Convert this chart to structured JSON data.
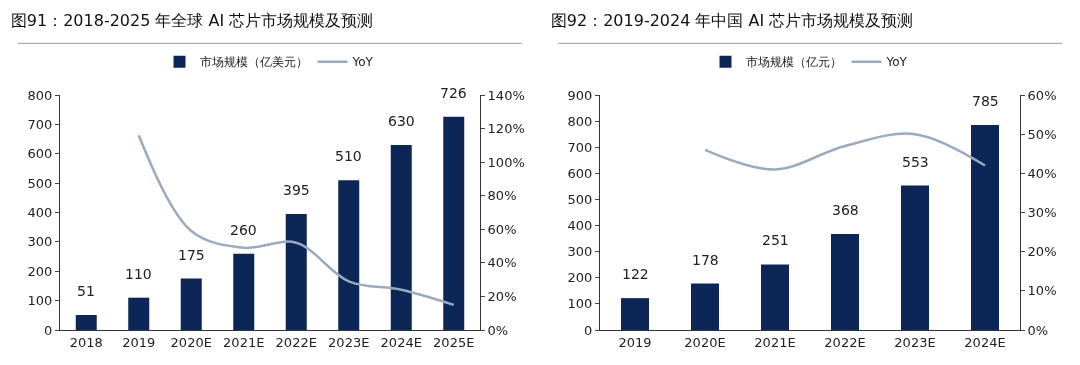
{
  "chart_data": [
    {
      "type": "bar",
      "title": "图91：2018-2025 年全球 AI 芯片市场规模及预测",
      "categories": [
        "2018",
        "2019",
        "2020E",
        "2021E",
        "2022E",
        "2023E",
        "2024E",
        "2025E"
      ],
      "series": [
        {
          "name": "市场规模（亿美元）",
          "color": "#0c2658",
          "values": [
            51,
            110,
            175,
            260,
            395,
            510,
            630,
            726
          ],
          "value_labels": [
            "51",
            "110",
            "175",
            "260",
            "395",
            "510",
            "630",
            "726"
          ]
        },
        {
          "name": "YoY",
          "type": "line",
          "axis": "y2",
          "color": "#9aabbf",
          "values": [
            null,
            116,
            59,
            49,
            52,
            29,
            24,
            15
          ]
        }
      ],
      "ylim": [
        0,
        800
      ],
      "yticks": [
        0,
        100,
        200,
        300,
        400,
        500,
        600,
        700,
        800
      ],
      "y2lim": [
        0,
        140
      ],
      "y2ticks": [
        {
          "value": 0,
          "label": "0%"
        },
        {
          "value": 20,
          "label": "20%"
        },
        {
          "value": 40,
          "label": "40%"
        },
        {
          "value": 60,
          "label": "60%"
        },
        {
          "value": 80,
          "label": "80%"
        },
        {
          "value": 100,
          "label": "100%"
        },
        {
          "value": 120,
          "label": "120%"
        },
        {
          "value": 140,
          "label": "140%"
        }
      ],
      "grid": false,
      "legend": "top",
      "marker": "none",
      "line_style": "solid"
    },
    {
      "type": "bar",
      "title": "图92：2019-2024 年中国 AI 芯片市场规模及预测",
      "categories": [
        "2019",
        "2020E",
        "2021E",
        "2022E",
        "2023E",
        "2024E"
      ],
      "series": [
        {
          "name": "市场规模（亿元）",
          "color": "#0c2658",
          "values": [
            122,
            178,
            251,
            368,
            553,
            785
          ],
          "value_labels": [
            "122",
            "178",
            "251",
            "368",
            "553",
            "785"
          ]
        },
        {
          "name": "YoY",
          "type": "line",
          "axis": "y2",
          "color": "#9aabbf",
          "values": [
            null,
            46,
            41,
            47,
            50,
            42
          ]
        }
      ],
      "ylim": [
        0,
        900
      ],
      "yticks": [
        0,
        100,
        200,
        300,
        400,
        500,
        600,
        700,
        800,
        900
      ],
      "y2lim": [
        0,
        60
      ],
      "y2ticks": [
        {
          "value": 0,
          "label": "0%"
        },
        {
          "value": 10,
          "label": "10%"
        },
        {
          "value": 20,
          "label": "20%"
        },
        {
          "value": 30,
          "label": "30%"
        },
        {
          "value": 40,
          "label": "40%"
        },
        {
          "value": 50,
          "label": "50%"
        },
        {
          "value": 60,
          "label": "60%"
        }
      ],
      "grid": false,
      "legend": "top",
      "marker": "none",
      "line_style": "solid"
    }
  ]
}
